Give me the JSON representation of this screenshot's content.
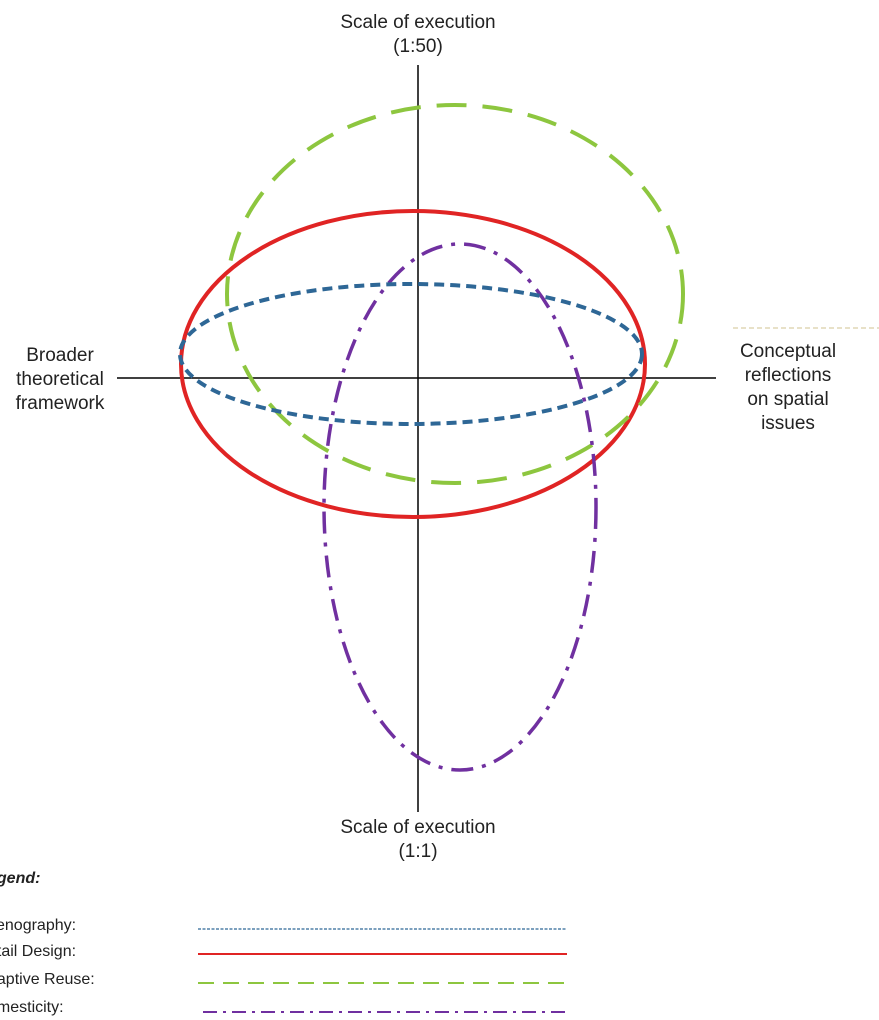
{
  "labels": {
    "top": [
      "Scale of execution",
      "(1:50)"
    ],
    "bottom": [
      "Scale of execution",
      "(1:1)"
    ],
    "left": [
      "Broader",
      "theoretical",
      "framework"
    ],
    "right": [
      "Conceptual",
      "reflections",
      "on spatial",
      "issues"
    ]
  },
  "legend": {
    "title": "egend:",
    "items": [
      {
        "label": "cenography:",
        "color": "#2e6796",
        "style": "dotted"
      },
      {
        "label": "etail Design:",
        "color": "#e02424",
        "style": "solid"
      },
      {
        "label": "daptive Reuse:",
        "color": "#8dc63f",
        "style": "dashed"
      },
      {
        "label": "omesticity:",
        "color": "#7030a0",
        "style": "dashdot"
      }
    ]
  },
  "colors": {
    "axis": "#000000",
    "scenography": "#2e6796",
    "detail": "#e02424",
    "reuse": "#8dc63f",
    "domesticity": "#7030a0"
  }
}
